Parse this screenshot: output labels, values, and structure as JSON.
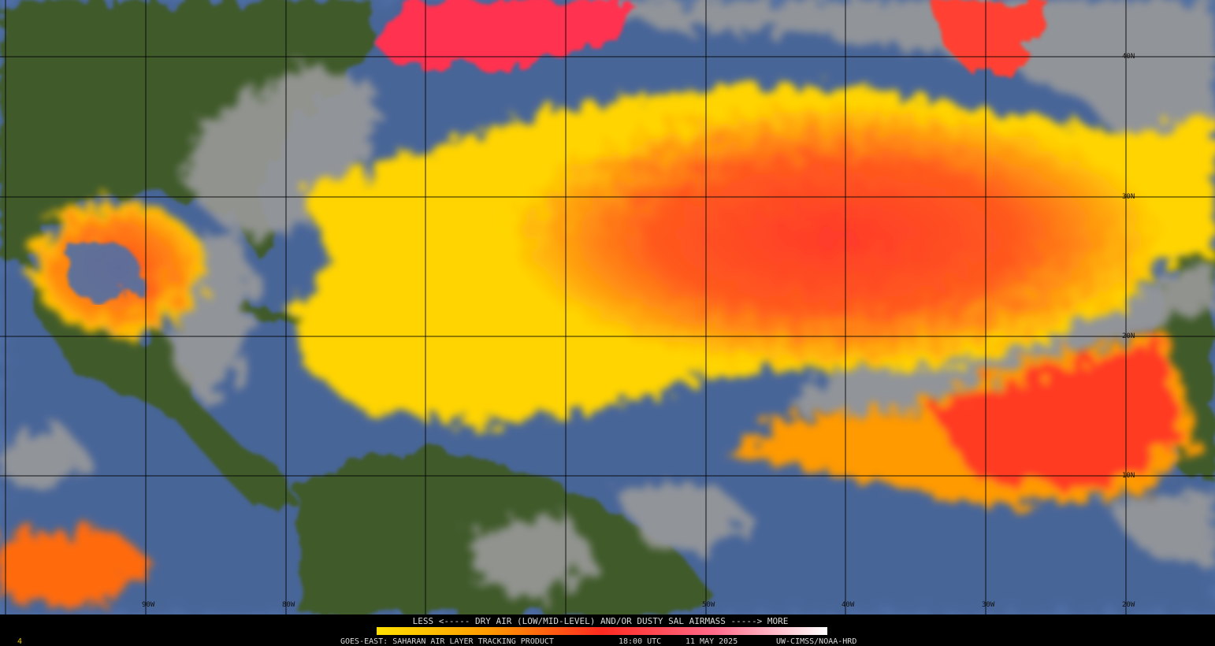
{
  "colorbar": {
    "caption": "LESS <----- DRY AIR (LOW/MID-LEVEL) AND/OR DUSTY SAL AIRMASS -----> MORE"
  },
  "footer": {
    "frame": "4",
    "product": "GOES-EAST: SAHARAN AIR LAYER TRACKING PRODUCT",
    "time": "18:00 UTC",
    "date": "11 MAY 2025",
    "credit": "UW-CIMSS/NOAA-HRD"
  },
  "map": {
    "latitude_labels": [
      "40N",
      "30N",
      "20N",
      "10N"
    ],
    "longitude_labels": [
      "90W",
      "80W",
      "50W",
      "40W",
      "30W",
      "20W"
    ]
  }
}
